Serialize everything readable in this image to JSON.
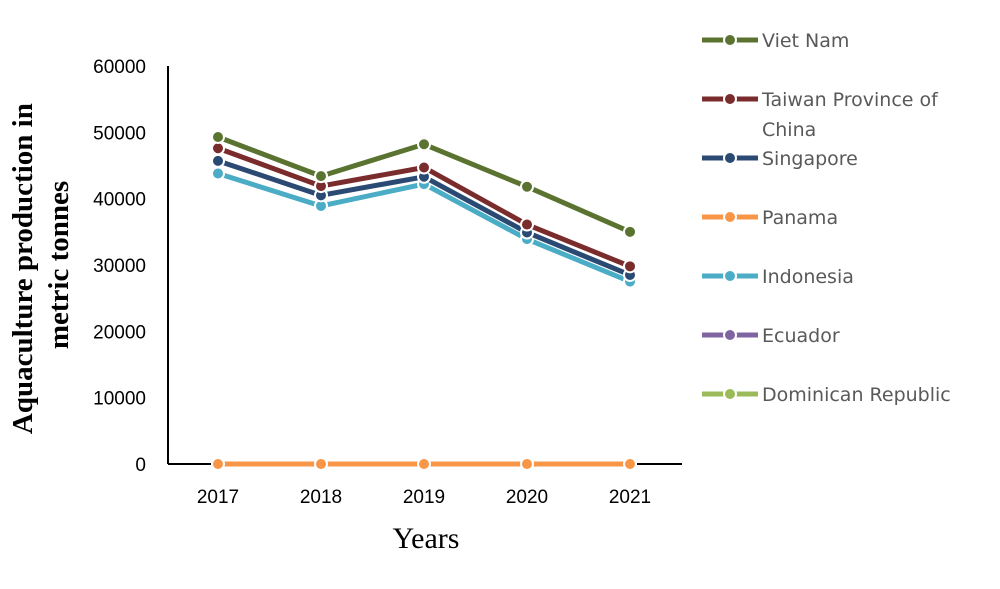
{
  "chart_data": {
    "type": "line",
    "x": [
      2017,
      2018,
      2019,
      2020,
      2021
    ],
    "xlabel": "Years",
    "ylabel_lines": [
      "Aquaculture production in",
      "metric tonnes"
    ],
    "ylim": [
      0,
      60000
    ],
    "yticks": [
      0,
      10000,
      20000,
      30000,
      40000,
      50000,
      60000
    ],
    "grid": false,
    "legend_position": "right",
    "series": [
      {
        "name": "Viet Nam",
        "legend_lines": [
          "Viet Nam"
        ],
        "color": "#5B7330",
        "values": [
          49300,
          43400,
          48200,
          41800,
          35000
        ]
      },
      {
        "name": "Taiwan Province of China",
        "legend_lines": [
          "Taiwan Province of",
          "China"
        ],
        "color": "#7A2B2B",
        "values": [
          47600,
          41900,
          44700,
          36100,
          29800
        ]
      },
      {
        "name": "Singapore",
        "legend_lines": [
          "Singapore"
        ],
        "color": "#2B4A73",
        "values": [
          45700,
          40500,
          43300,
          34900,
          28500
        ]
      },
      {
        "name": "Panama",
        "legend_lines": [
          "Panama"
        ],
        "color": "#F79646",
        "values": [
          0,
          0,
          0,
          0,
          0
        ]
      },
      {
        "name": "Indonesia",
        "legend_lines": [
          "Indonesia"
        ],
        "color": "#4BACC6",
        "values": [
          43800,
          38900,
          42200,
          33900,
          27500
        ]
      },
      {
        "name": "Ecuador",
        "legend_lines": [
          "Ecuador"
        ],
        "color": "#8064A2",
        "values": [
          0,
          0,
          0,
          0,
          0
        ]
      },
      {
        "name": "Dominican Republic",
        "legend_lines": [
          "Dominican Republic"
        ],
        "color": "#9BBB59",
        "values": [
          0,
          0,
          0,
          0,
          0
        ]
      },
      {
        "name": "",
        "legend_lines": [],
        "color": "#4F81BD",
        "values": [
          0,
          0,
          0,
          0,
          0
        ]
      }
    ]
  }
}
